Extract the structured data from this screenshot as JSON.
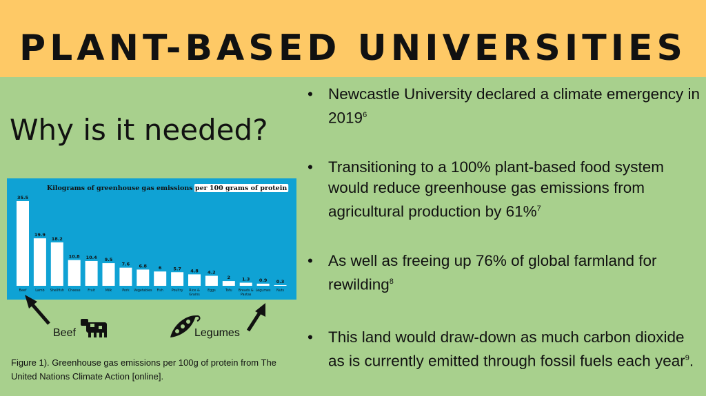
{
  "banner": {
    "title": "PLANT-BASED UNIVERSITIES"
  },
  "heading": "Why is it needed?",
  "bullets": [
    {
      "text": "Newcastle University declared a climate emergency in 2019",
      "sup": "6"
    },
    {
      "text": "Transitioning to a 100% plant-based food system would reduce greenhouse gas emissions from agricultural production by 61%",
      "sup": "7"
    },
    {
      "text": "As well as freeing up 76% of global farmland for rewilding",
      "sup": "8"
    },
    {
      "text": "This land would draw-down as much carbon dioxide as is currently emitted through fossil fuels each year",
      "sup": "9",
      "after": "."
    }
  ],
  "labels": {
    "beef": "Beef",
    "legumes": "Legumes"
  },
  "caption": "Figure 1). Greenhouse gas emissions per 100g of protein from The United Nations Climate Action [online].",
  "colors": {
    "banner": "#fec966",
    "background": "#a8d08d",
    "chart_bg": "#0fa2d4",
    "bar": "#ffffff"
  },
  "icons": [
    "cow-icon",
    "pea-pod-icon",
    "arrow-icon"
  ],
  "chart_data": {
    "type": "bar",
    "title_part1": "Kilograms of greenhouse gas emissions ",
    "title_part2": "per 100 grams of protein",
    "categories": [
      "Beef",
      "Lamb",
      "Shellfish",
      "Cheese",
      "Fruit",
      "Milk",
      "Pork",
      "Vegetables",
      "Fish",
      "Poultry",
      "Rice & Grains",
      "Eggs",
      "Tofu",
      "Breads & Pastas",
      "Legumes",
      "Nuts"
    ],
    "values": [
      35.5,
      19.9,
      18.2,
      10.8,
      10.4,
      9.5,
      7.6,
      6.8,
      6,
      5.7,
      4.8,
      4.2,
      2,
      1.3,
      0.9,
      0.3
    ],
    "value_labels": [
      "35.5",
      "19.9",
      "18.2",
      "10.8",
      "10.4",
      "9.5",
      "7.6",
      "6.8",
      "6",
      "5.7",
      "4.8",
      "4.2",
      "2",
      "1.3",
      "0.9",
      "0.3"
    ],
    "ylim": [
      0,
      35.5
    ]
  }
}
